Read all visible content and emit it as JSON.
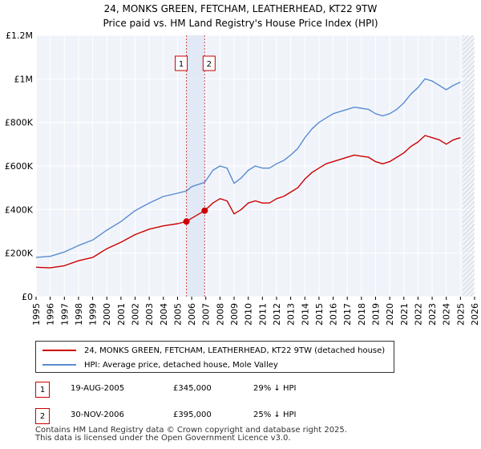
{
  "chart_data": {
    "type": "line",
    "title": "24, MONKS GREEN, FETCHAM, LEATHERHEAD, KT22 9TW",
    "subtitle": "Price paid vs. HM Land Registry's House Price Index (HPI)",
    "x_ticks": [
      1995,
      1996,
      1997,
      1998,
      1999,
      2000,
      2001,
      2002,
      2003,
      2004,
      2005,
      2006,
      2007,
      2008,
      2009,
      2010,
      2011,
      2012,
      2013,
      2014,
      2015,
      2016,
      2017,
      2018,
      2019,
      2020,
      2021,
      2022,
      2023,
      2024,
      2025,
      2026
    ],
    "y_ticks": [
      {
        "value": 0,
        "label": "£0"
      },
      {
        "value": 200000,
        "label": "£200K"
      },
      {
        "value": 400000,
        "label": "£400K"
      },
      {
        "value": 600000,
        "label": "£600K"
      },
      {
        "value": 800000,
        "label": "£800K"
      },
      {
        "value": 1000000,
        "label": "£1M"
      },
      {
        "value": 1200000,
        "label": "£1.2M"
      }
    ],
    "xlim": [
      1995,
      2026
    ],
    "ylim": [
      0,
      1200000
    ],
    "grid": true,
    "hatched_region_start": 2025.17,
    "series": [
      {
        "name": "24, MONKS GREEN, FETCHAM, LEATHERHEAD, KT22 9TW (detached house)",
        "color": "#cc0000",
        "points": [
          [
            1995.0,
            135000
          ],
          [
            1996.0,
            132000
          ],
          [
            1997.0,
            142000
          ],
          [
            1998.0,
            165000
          ],
          [
            1999.0,
            180000
          ],
          [
            2000.0,
            220000
          ],
          [
            2001.0,
            250000
          ],
          [
            2002.0,
            285000
          ],
          [
            2003.0,
            310000
          ],
          [
            2004.0,
            325000
          ],
          [
            2005.0,
            335000
          ],
          [
            2005.63,
            345000
          ],
          [
            2006.0,
            360000
          ],
          [
            2006.92,
            395000
          ],
          [
            2007.5,
            430000
          ],
          [
            2008.0,
            450000
          ],
          [
            2008.5,
            440000
          ],
          [
            2009.0,
            380000
          ],
          [
            2009.5,
            400000
          ],
          [
            2010.0,
            430000
          ],
          [
            2010.5,
            440000
          ],
          [
            2011.0,
            430000
          ],
          [
            2011.5,
            430000
          ],
          [
            2012.0,
            450000
          ],
          [
            2012.5,
            460000
          ],
          [
            2013.0,
            480000
          ],
          [
            2013.5,
            500000
          ],
          [
            2014.0,
            540000
          ],
          [
            2014.5,
            570000
          ],
          [
            2015.0,
            590000
          ],
          [
            2015.5,
            610000
          ],
          [
            2016.0,
            620000
          ],
          [
            2016.5,
            630000
          ],
          [
            2017.0,
            640000
          ],
          [
            2017.5,
            650000
          ],
          [
            2018.0,
            645000
          ],
          [
            2018.5,
            640000
          ],
          [
            2019.0,
            620000
          ],
          [
            2019.5,
            610000
          ],
          [
            2020.0,
            620000
          ],
          [
            2020.5,
            640000
          ],
          [
            2021.0,
            660000
          ],
          [
            2021.5,
            690000
          ],
          [
            2022.0,
            710000
          ],
          [
            2022.5,
            740000
          ],
          [
            2023.0,
            730000
          ],
          [
            2023.5,
            720000
          ],
          [
            2024.0,
            700000
          ],
          [
            2024.5,
            720000
          ],
          [
            2025.0,
            730000
          ]
        ]
      },
      {
        "name": "HPI: Average price, detached house, Mole Valley",
        "color": "#5b8bd0",
        "points": [
          [
            1995.0,
            180000
          ],
          [
            1996.0,
            185000
          ],
          [
            1997.0,
            205000
          ],
          [
            1998.0,
            235000
          ],
          [
            1999.0,
            260000
          ],
          [
            2000.0,
            305000
          ],
          [
            2001.0,
            345000
          ],
          [
            2002.0,
            395000
          ],
          [
            2003.0,
            430000
          ],
          [
            2004.0,
            460000
          ],
          [
            2005.0,
            475000
          ],
          [
            2005.63,
            485000
          ],
          [
            2006.0,
            505000
          ],
          [
            2006.92,
            525000
          ],
          [
            2007.5,
            580000
          ],
          [
            2008.0,
            600000
          ],
          [
            2008.5,
            590000
          ],
          [
            2009.0,
            520000
          ],
          [
            2009.5,
            545000
          ],
          [
            2010.0,
            580000
          ],
          [
            2010.5,
            600000
          ],
          [
            2011.0,
            590000
          ],
          [
            2011.5,
            590000
          ],
          [
            2012.0,
            610000
          ],
          [
            2012.5,
            625000
          ],
          [
            2013.0,
            650000
          ],
          [
            2013.5,
            680000
          ],
          [
            2014.0,
            730000
          ],
          [
            2014.5,
            770000
          ],
          [
            2015.0,
            800000
          ],
          [
            2015.5,
            820000
          ],
          [
            2016.0,
            840000
          ],
          [
            2016.5,
            850000
          ],
          [
            2017.0,
            860000
          ],
          [
            2017.5,
            870000
          ],
          [
            2018.0,
            865000
          ],
          [
            2018.5,
            860000
          ],
          [
            2019.0,
            840000
          ],
          [
            2019.5,
            830000
          ],
          [
            2020.0,
            840000
          ],
          [
            2020.5,
            860000
          ],
          [
            2021.0,
            890000
          ],
          [
            2021.5,
            930000
          ],
          [
            2022.0,
            960000
          ],
          [
            2022.5,
            1000000
          ],
          [
            2023.0,
            990000
          ],
          [
            2023.5,
            970000
          ],
          [
            2024.0,
            950000
          ],
          [
            2024.5,
            970000
          ],
          [
            2025.0,
            985000
          ]
        ]
      }
    ],
    "sales": [
      {
        "label": "1",
        "x": 2005.63,
        "value": 345000
      },
      {
        "label": "2",
        "x": 2006.92,
        "value": 395000
      }
    ]
  },
  "legend": {
    "property_label": "24, MONKS GREEN, FETCHAM, LEATHERHEAD, KT22 9TW (detached house)",
    "hpi_label": "HPI: Average price, detached house, Mole Valley"
  },
  "sales_table": [
    {
      "id": "1",
      "date": "19-AUG-2005",
      "price": "£345,000",
      "hpi_diff": "29% ↓ HPI"
    },
    {
      "id": "2",
      "date": "30-NOV-2006",
      "price": "£395,000",
      "hpi_diff": "25% ↓ HPI"
    }
  ],
  "footer": {
    "line1": "Contains HM Land Registry data © Crown copyright and database right 2025.",
    "line2": "This data is licensed under the Open Government Licence v3.0."
  },
  "colors": {
    "property": "#cc0000",
    "hpi": "#5b8bd0",
    "plot_bg": "#f0f4fa",
    "grid": "#ffffff",
    "band": "#dde6f5"
  }
}
